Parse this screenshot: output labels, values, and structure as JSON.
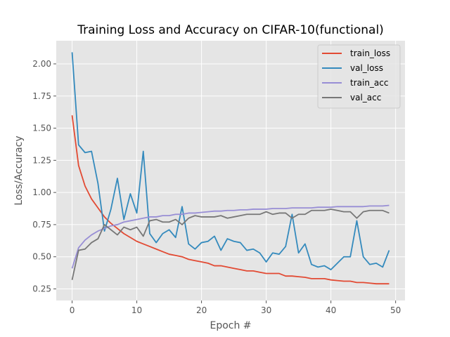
{
  "chart_data": {
    "type": "line",
    "title": "Training Loss and Accuracy on CIFAR-10(functional)",
    "xlabel": "Epoch #",
    "ylabel": "Loss/Accuracy",
    "xlim": [
      -2.45,
      51.45
    ],
    "ylim": [
      0.16,
      2.18
    ],
    "xticks": [
      0,
      10,
      20,
      30,
      40,
      50
    ],
    "yticks": [
      0.25,
      0.5,
      0.75,
      1.0,
      1.25,
      1.5,
      1.75,
      2.0
    ],
    "ytick_labels": [
      "0.25",
      "0.50",
      "0.75",
      "1.00",
      "1.25",
      "1.50",
      "1.75",
      "2.00"
    ],
    "grid": true,
    "legend_position": "top-right",
    "x": [
      0,
      1,
      2,
      3,
      4,
      5,
      6,
      7,
      8,
      9,
      10,
      11,
      12,
      13,
      14,
      15,
      16,
      17,
      18,
      19,
      20,
      21,
      22,
      23,
      24,
      25,
      26,
      27,
      28,
      29,
      30,
      31,
      32,
      33,
      34,
      35,
      36,
      37,
      38,
      39,
      40,
      41,
      42,
      43,
      44,
      45,
      46,
      47,
      48,
      49
    ],
    "series": [
      {
        "name": "train_loss",
        "color": "#e24a33",
        "values": [
          1.6,
          1.21,
          1.05,
          0.95,
          0.88,
          0.81,
          0.76,
          0.72,
          0.68,
          0.65,
          0.62,
          0.6,
          0.58,
          0.56,
          0.54,
          0.52,
          0.51,
          0.5,
          0.48,
          0.47,
          0.46,
          0.45,
          0.43,
          0.43,
          0.42,
          0.41,
          0.4,
          0.39,
          0.39,
          0.38,
          0.37,
          0.37,
          0.37,
          0.35,
          0.35,
          0.345,
          0.34,
          0.33,
          0.33,
          0.33,
          0.32,
          0.315,
          0.31,
          0.31,
          0.3,
          0.3,
          0.295,
          0.29,
          0.29,
          0.29
        ]
      },
      {
        "name": "val_loss",
        "color": "#348abd",
        "values": [
          2.09,
          1.37,
          1.31,
          1.32,
          1.07,
          0.7,
          0.87,
          1.11,
          0.79,
          0.99,
          0.84,
          1.32,
          0.68,
          0.61,
          0.68,
          0.71,
          0.65,
          0.89,
          0.6,
          0.56,
          0.61,
          0.62,
          0.66,
          0.55,
          0.64,
          0.62,
          0.61,
          0.55,
          0.56,
          0.53,
          0.46,
          0.53,
          0.52,
          0.58,
          0.83,
          0.53,
          0.6,
          0.44,
          0.42,
          0.43,
          0.4,
          0.45,
          0.5,
          0.5,
          0.78,
          0.5,
          0.44,
          0.45,
          0.42,
          0.55
        ]
      },
      {
        "name": "train_acc",
        "color": "#988ed5",
        "values": [
          0.41,
          0.57,
          0.63,
          0.67,
          0.7,
          0.72,
          0.74,
          0.75,
          0.77,
          0.78,
          0.79,
          0.8,
          0.81,
          0.81,
          0.82,
          0.82,
          0.83,
          0.83,
          0.84,
          0.84,
          0.845,
          0.85,
          0.855,
          0.855,
          0.86,
          0.86,
          0.865,
          0.865,
          0.87,
          0.87,
          0.87,
          0.875,
          0.875,
          0.875,
          0.88,
          0.88,
          0.88,
          0.88,
          0.885,
          0.885,
          0.885,
          0.89,
          0.89,
          0.89,
          0.89,
          0.89,
          0.895,
          0.895,
          0.895,
          0.9
        ]
      },
      {
        "name": "val_acc",
        "color": "#777777",
        "values": [
          0.32,
          0.55,
          0.56,
          0.61,
          0.64,
          0.75,
          0.71,
          0.67,
          0.73,
          0.71,
          0.73,
          0.66,
          0.78,
          0.79,
          0.77,
          0.77,
          0.79,
          0.75,
          0.8,
          0.82,
          0.81,
          0.81,
          0.81,
          0.82,
          0.8,
          0.81,
          0.82,
          0.83,
          0.83,
          0.83,
          0.85,
          0.83,
          0.84,
          0.84,
          0.8,
          0.83,
          0.83,
          0.86,
          0.86,
          0.86,
          0.87,
          0.86,
          0.85,
          0.85,
          0.8,
          0.85,
          0.86,
          0.86,
          0.86,
          0.84
        ]
      }
    ]
  }
}
